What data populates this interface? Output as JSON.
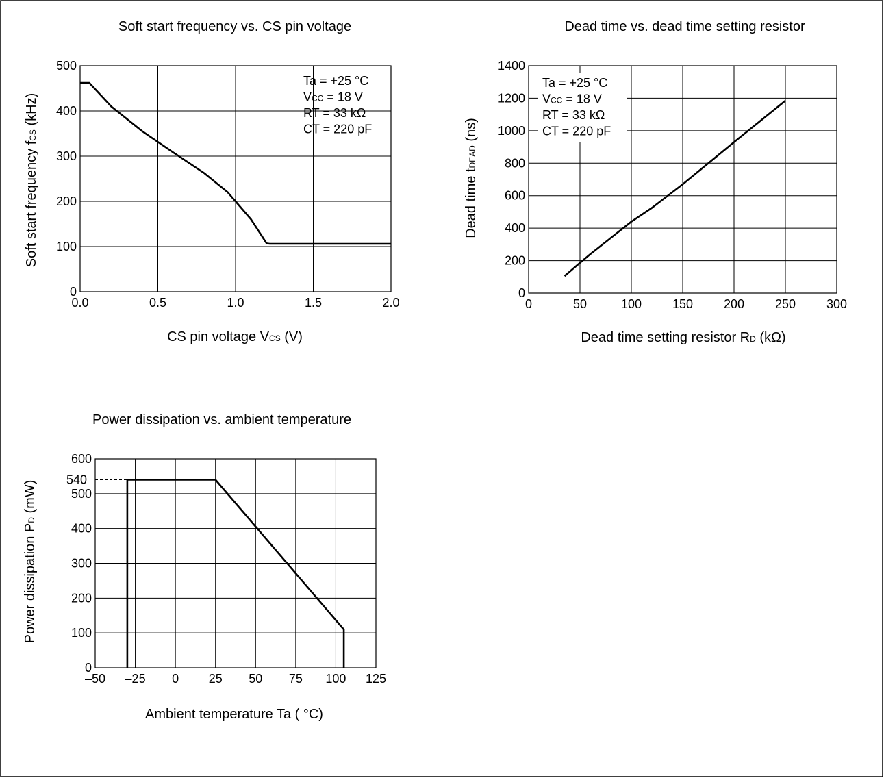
{
  "chart_data": [
    {
      "type": "line",
      "title": "Soft start frequency vs. CS pin voltage",
      "xlabel": {
        "main": "CS pin voltage  V",
        "sub": "CS",
        "tail": " (V)"
      },
      "ylabel": {
        "main": "Soft start frequency  f",
        "sub": "CS",
        "tail": " (kHz)"
      },
      "xlim": [
        0,
        2.0
      ],
      "ylim": [
        0,
        500
      ],
      "x_ticks": [
        "0.0",
        "0.5",
        "1.0",
        "1.5",
        "2.0"
      ],
      "y_ticks": [
        "0",
        "100",
        "200",
        "300",
        "400",
        "500"
      ],
      "grid": true,
      "conditions": [
        {
          "main": "Ta = +25 °C",
          "sub": "",
          "tail": ""
        },
        {
          "main": "V",
          "sub": "CC",
          "tail": " = 18 V"
        },
        {
          "main": "RT = 33 kΩ",
          "sub": "",
          "tail": ""
        },
        {
          "main": "CT = 220 pF",
          "sub": "",
          "tail": ""
        }
      ],
      "series": [
        {
          "x": [
            0,
            0.06,
            0.2,
            0.4,
            0.6,
            0.8,
            0.95,
            1.1,
            1.2,
            1.22,
            2.0
          ],
          "y": [
            462,
            462,
            410,
            355,
            308,
            262,
            220,
            160,
            107,
            106,
            106
          ]
        }
      ]
    },
    {
      "type": "line",
      "title": "Dead time vs. dead time setting resistor",
      "xlabel": {
        "main": "Dead time setting resistor  R",
        "sub": "D",
        "tail": " (kΩ)"
      },
      "ylabel": {
        "main": "Dead time  t",
        "sub": "DEAD",
        "tail": " (ns)"
      },
      "xlim": [
        0,
        300
      ],
      "ylim": [
        0,
        1400
      ],
      "x_ticks": [
        "0",
        "50",
        "100",
        "150",
        "200",
        "250",
        "300"
      ],
      "y_ticks": [
        "0",
        "200",
        "400",
        "600",
        "800",
        "1000",
        "1200",
        "1400"
      ],
      "grid": true,
      "conditions": [
        {
          "main": "Ta = +25 °C",
          "sub": "",
          "tail": ""
        },
        {
          "main": "V",
          "sub": "CC",
          "tail": " = 18 V"
        },
        {
          "main": "RT = 33 kΩ",
          "sub": "",
          "tail": ""
        },
        {
          "main": "CT = 220 pF",
          "sub": "",
          "tail": ""
        }
      ],
      "series": [
        {
          "x": [
            35,
            45,
            60,
            80,
            100,
            120,
            150,
            200,
            250
          ],
          "y": [
            105,
            160,
            240,
            340,
            440,
            525,
            670,
            930,
            1185
          ]
        }
      ]
    },
    {
      "type": "line",
      "title": "Power dissipation vs. ambient temperature",
      "xlabel": {
        "main": "Ambient temperature  Ta ( °C)",
        "sub": "",
        "tail": ""
      },
      "ylabel": {
        "main": "Power dissipation  P",
        "sub": "D",
        "tail": " (mW)"
      },
      "xlim": [
        -50,
        125
      ],
      "ylim": [
        0,
        600
      ],
      "x_ticks": [
        "–50",
        "–25",
        "0",
        "25",
        "50",
        "75",
        "100",
        "125"
      ],
      "y_ticks": [
        "0",
        "100",
        "200",
        "300",
        "400",
        "500",
        "600"
      ],
      "extra_y_tick": {
        "label": "540",
        "value": 540
      },
      "grid": true,
      "series": [
        {
          "x": [
            -30,
            -30,
            25,
            105,
            105
          ],
          "y": [
            0,
            540,
            540,
            110,
            0
          ]
        }
      ]
    }
  ]
}
